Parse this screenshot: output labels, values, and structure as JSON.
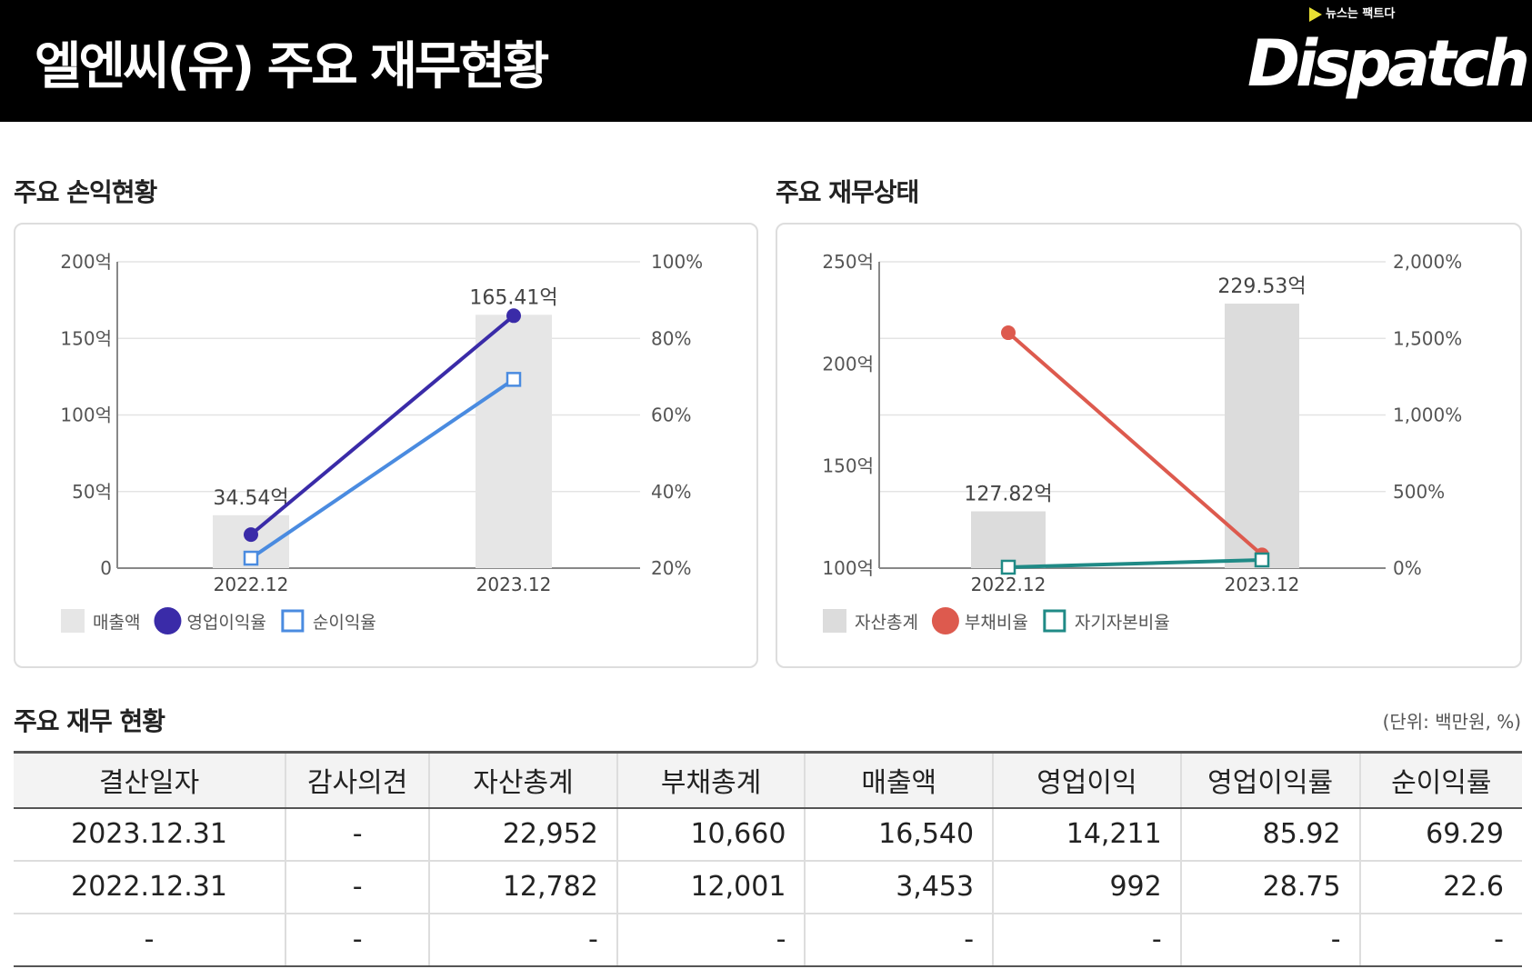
{
  "header": {
    "title": "엘엔씨(유) 주요 재무현황",
    "logo": "Dispatch",
    "logo_tagline": "뉴스는 팩트다"
  },
  "chart_data": [
    {
      "type": "bar+line",
      "title": "주요 손익현황",
      "categories": [
        "2022.12",
        "2023.12"
      ],
      "left_axis": {
        "ticks": [
          "0",
          "50억",
          "100억",
          "150억",
          "200억"
        ],
        "range": [
          0,
          200
        ]
      },
      "right_axis": {
        "ticks": [
          "20%",
          "40%",
          "60%",
          "80%",
          "100%"
        ],
        "range": [
          20,
          100
        ]
      },
      "bar": {
        "name": "매출액",
        "values": [
          34.54,
          165.41
        ],
        "labels": [
          "34.54억",
          "165.41억"
        ],
        "color": "#e6e6e6"
      },
      "lines": [
        {
          "name": "영업이익율",
          "values": [
            28.75,
            85.92
          ],
          "color": "#3a2ba8",
          "marker": "circle"
        },
        {
          "name": "순이익율",
          "values": [
            22.6,
            69.29
          ],
          "color": "#4a8be0",
          "marker": "square"
        }
      ]
    },
    {
      "type": "bar+line",
      "title": "주요 재무상태",
      "categories": [
        "2022.12",
        "2023.12"
      ],
      "left_axis": {
        "ticks": [
          "100억",
          "150억",
          "200억",
          "250억"
        ],
        "range": [
          100,
          250
        ]
      },
      "right_axis": {
        "ticks": [
          "0%",
          "500%",
          "1,000%",
          "1,500%",
          "2,000%"
        ],
        "range": [
          0,
          2000
        ]
      },
      "bar": {
        "name": "자산총계",
        "values": [
          127.82,
          229.53
        ],
        "labels": [
          "127.82억",
          "229.53억"
        ],
        "color": "#dcdcdc"
      },
      "lines": [
        {
          "name": "부채비율",
          "values": [
            1536.8,
            86.7
          ],
          "color": "#dd5a4e",
          "marker": "circle"
        },
        {
          "name": "자기자본비율",
          "values": [
            6.1,
            53.6
          ],
          "color": "#1f8a86",
          "marker": "square"
        }
      ]
    }
  ],
  "table": {
    "title": "주요 재무 현황",
    "unit": "(단위: 백만원, %)",
    "headers": [
      "결산일자",
      "감사의견",
      "자산총계",
      "부채총계",
      "매출액",
      "영업이익",
      "영업이익률",
      "순이익률"
    ],
    "rows": [
      [
        "2023.12.31",
        "-",
        "22,952",
        "10,660",
        "16,540",
        "14,211",
        "85.92",
        "69.29"
      ],
      [
        "2022.12.31",
        "-",
        "12,782",
        "12,001",
        "3,453",
        "992",
        "28.75",
        "22.6"
      ],
      [
        "-",
        "-",
        "-",
        "-",
        "-",
        "-",
        "-",
        "-"
      ]
    ]
  }
}
